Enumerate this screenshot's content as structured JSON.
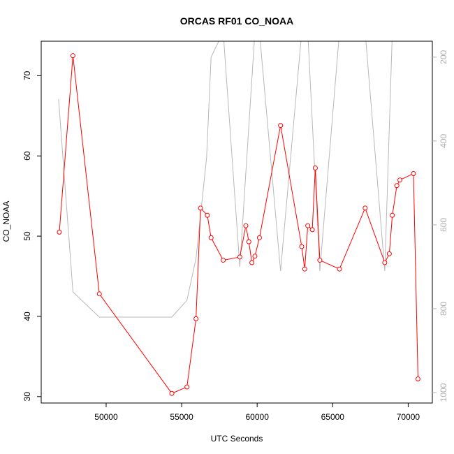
{
  "chart_data": {
    "type": "line",
    "title": "ORCAS RF01 CO_NOAA",
    "xlabel": "UTC Seconds",
    "ylabel": "CO_NOAA",
    "xlim": [
      45700,
      71600
    ],
    "ylim": [
      29.2,
      74.3
    ],
    "y2lim": [
      1025,
      162
    ],
    "y2_reversed": true,
    "x_ticks": [
      50000,
      55000,
      60000,
      65000,
      70000
    ],
    "y_ticks": [
      30,
      40,
      50,
      60,
      70
    ],
    "y2_ticks": [
      200,
      400,
      600,
      800,
      1000
    ],
    "series": [
      {
        "color": "#ff0000",
        "axis": "left",
        "marker": "open-circle",
        "x": [
          46900,
          47800,
          49550,
          54350,
          55350,
          55950,
          56250,
          56700,
          56950,
          57750,
          58850,
          59250,
          59450,
          59650,
          59850,
          60150,
          61550,
          62950,
          63150,
          63350,
          63650,
          63850,
          64150,
          65450,
          67150,
          68450,
          68750,
          68950,
          69250,
          69450,
          70350,
          70650
        ],
        "y": [
          50.5,
          72.5,
          42.8,
          30.4,
          31.2,
          39.7,
          53.5,
          52.6,
          49.8,
          47.0,
          47.4,
          51.3,
          49.3,
          46.7,
          47.5,
          49.8,
          63.8,
          48.7,
          45.9,
          51.3,
          50.8,
          58.5,
          47.0,
          45.9,
          53.5,
          46.7,
          47.8,
          52.6,
          56.3,
          57.0,
          57.8,
          32.2
        ]
      },
      {
        "color": "#b8b8b8",
        "axis": "right",
        "marker": "none",
        "x": [
          46850,
          47800,
          49550,
          54350,
          55350,
          55950,
          56650,
          56950,
          57750,
          58850,
          59850,
          60150,
          61550,
          62950,
          63150,
          63350,
          64150,
          65450,
          67150,
          68450,
          68950,
          69450,
          70650
        ],
        "y": [
          300,
          760,
          820,
          820,
          780,
          680,
          440,
          200,
          140,
          700,
          140,
          140,
          710,
          140,
          140,
          140,
          710,
          140,
          140,
          710,
          140,
          140,
          140
        ]
      }
    ]
  }
}
